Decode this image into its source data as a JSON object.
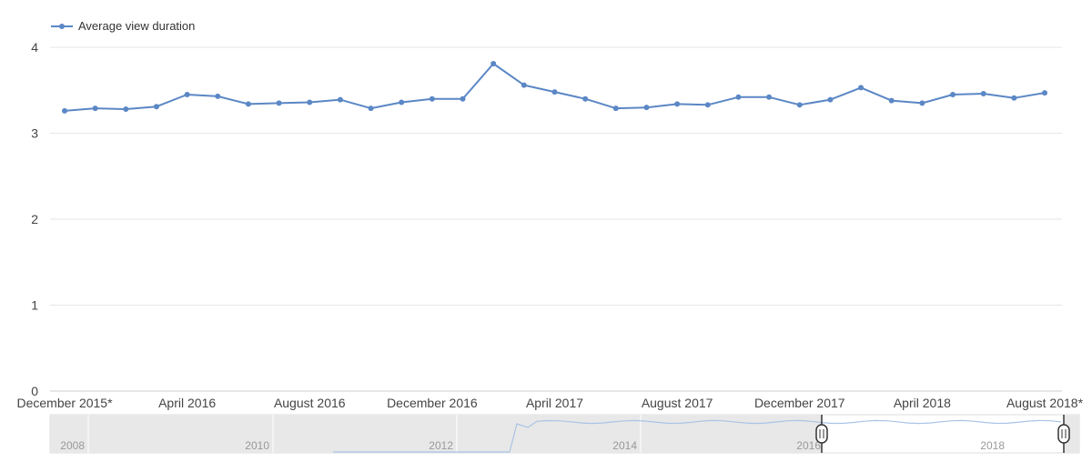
{
  "chart_data": {
    "type": "line",
    "legend": {
      "label": "Average view duration",
      "position": "top-left"
    },
    "colors": {
      "series": "#5b87c5",
      "grid": "#e6e6e6",
      "navigator_shade": "#e8e8e8",
      "navigator_line": "#aac3e6"
    },
    "ylim": [
      0,
      4
    ],
    "yticks": [
      "0",
      "1",
      "2",
      "3",
      "4"
    ],
    "grid": true,
    "x_tick_labels": [
      "December 2015*",
      "April 2016",
      "August 2016",
      "December 2016",
      "April 2017",
      "August 2017",
      "December 2017",
      "April 2018",
      "August 2018*"
    ],
    "x": [
      "2015-12",
      "2016-01",
      "2016-02",
      "2016-03",
      "2016-04",
      "2016-05",
      "2016-06",
      "2016-07",
      "2016-08",
      "2016-09",
      "2016-10",
      "2016-11",
      "2016-12",
      "2017-01",
      "2017-02",
      "2017-03",
      "2017-04",
      "2017-05",
      "2017-06",
      "2017-07",
      "2017-08",
      "2017-09",
      "2017-10",
      "2017-11",
      "2017-12",
      "2018-01",
      "2018-02",
      "2018-03",
      "2018-04",
      "2018-05",
      "2018-06",
      "2018-07",
      "2018-08"
    ],
    "series": [
      {
        "name": "Average view duration",
        "values": [
          3.26,
          3.29,
          3.28,
          3.31,
          3.45,
          3.43,
          3.34,
          3.35,
          3.36,
          3.39,
          3.29,
          3.36,
          3.4,
          3.4,
          3.81,
          3.56,
          3.48,
          3.4,
          3.29,
          3.3,
          3.34,
          3.33,
          3.42,
          3.42,
          3.33,
          3.39,
          3.53,
          3.38,
          3.35,
          3.45,
          3.46,
          3.41,
          3.47
        ]
      }
    ],
    "navigator": {
      "year_labels": [
        "2008",
        "2010",
        "2012",
        "2014",
        "2016",
        "2018"
      ]
    }
  }
}
